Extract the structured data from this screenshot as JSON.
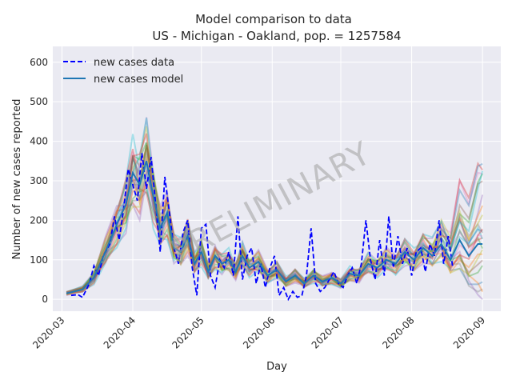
{
  "chart_data": {
    "type": "line",
    "title": "Model comparison to data",
    "subtitle": "US - Michigan - Oakland, pop. = 1257584",
    "xlabel": "Day",
    "ylabel": "Number of new cases reported",
    "watermark": "PRELIMINARY",
    "xlim": [
      "2020-02-26",
      "2020-09-09"
    ],
    "ylim": [
      -30,
      640
    ],
    "yticks": [
      0,
      100,
      200,
      300,
      400,
      500,
      600
    ],
    "xticks": [
      "2020-03",
      "2020-04",
      "2020-05",
      "2020-06",
      "2020-07",
      "2020-08",
      "2020-09"
    ],
    "grid": true,
    "legend_position": "top-left",
    "legend": [
      "new cases data",
      "new cases model"
    ],
    "colors": {
      "data": "#0000ff",
      "model": "#1f77b4",
      "background": "#eaeaf2",
      "grid": "#ffffff",
      "ensemble": [
        "#1f77b4",
        "#ff7f0e",
        "#2ca02c",
        "#d62728",
        "#9467bd",
        "#8c564b",
        "#e377c2",
        "#7f7f7f",
        "#bcbd22",
        "#17becf"
      ]
    },
    "series": [
      {
        "name": "new cases data",
        "style": "dashed",
        "points": [
          [
            "2020-03-05",
            10
          ],
          [
            "2020-03-08",
            12
          ],
          [
            "2020-03-10",
            5
          ],
          [
            "2020-03-13",
            40
          ],
          [
            "2020-03-15",
            85
          ],
          [
            "2020-03-17",
            60
          ],
          [
            "2020-03-19",
            110
          ],
          [
            "2020-03-22",
            140
          ],
          [
            "2020-03-24",
            210
          ],
          [
            "2020-03-26",
            150
          ],
          [
            "2020-03-28",
            230
          ],
          [
            "2020-03-30",
            330
          ],
          [
            "2020-04-01",
            290
          ],
          [
            "2020-04-03",
            250
          ],
          [
            "2020-04-05",
            370
          ],
          [
            "2020-04-07",
            280
          ],
          [
            "2020-04-09",
            360
          ],
          [
            "2020-04-11",
            240
          ],
          [
            "2020-04-13",
            120
          ],
          [
            "2020-04-15",
            310
          ],
          [
            "2020-04-17",
            220
          ],
          [
            "2020-04-19",
            130
          ],
          [
            "2020-04-21",
            90
          ],
          [
            "2020-04-23",
            170
          ],
          [
            "2020-04-25",
            200
          ],
          [
            "2020-04-27",
            80
          ],
          [
            "2020-04-29",
            10
          ],
          [
            "2020-05-01",
            180
          ],
          [
            "2020-05-03",
            190
          ],
          [
            "2020-05-05",
            60
          ],
          [
            "2020-05-07",
            30
          ],
          [
            "2020-05-09",
            100
          ],
          [
            "2020-05-11",
            80
          ],
          [
            "2020-05-13",
            120
          ],
          [
            "2020-05-15",
            60
          ],
          [
            "2020-05-17",
            210
          ],
          [
            "2020-05-19",
            50
          ],
          [
            "2020-05-21",
            110
          ],
          [
            "2020-05-23",
            130
          ],
          [
            "2020-05-25",
            40
          ],
          [
            "2020-05-27",
            90
          ],
          [
            "2020-05-29",
            30
          ],
          [
            "2020-05-31",
            80
          ],
          [
            "2020-06-02",
            110
          ],
          [
            "2020-06-04",
            10
          ],
          [
            "2020-06-06",
            30
          ],
          [
            "2020-06-08",
            0
          ],
          [
            "2020-06-10",
            20
          ],
          [
            "2020-06-12",
            5
          ],
          [
            "2020-06-14",
            10
          ],
          [
            "2020-06-16",
            60
          ],
          [
            "2020-06-18",
            180
          ],
          [
            "2020-06-20",
            40
          ],
          [
            "2020-06-22",
            20
          ],
          [
            "2020-06-24",
            30
          ],
          [
            "2020-06-26",
            50
          ],
          [
            "2020-06-28",
            70
          ],
          [
            "2020-06-30",
            40
          ],
          [
            "2020-07-02",
            30
          ],
          [
            "2020-07-04",
            60
          ],
          [
            "2020-07-06",
            80
          ],
          [
            "2020-07-08",
            40
          ],
          [
            "2020-07-10",
            90
          ],
          [
            "2020-07-12",
            200
          ],
          [
            "2020-07-14",
            100
          ],
          [
            "2020-07-16",
            50
          ],
          [
            "2020-07-18",
            150
          ],
          [
            "2020-07-20",
            60
          ],
          [
            "2020-07-22",
            210
          ],
          [
            "2020-07-24",
            80
          ],
          [
            "2020-07-26",
            160
          ],
          [
            "2020-07-28",
            90
          ],
          [
            "2020-07-30",
            130
          ],
          [
            "2020-08-01",
            60
          ],
          [
            "2020-08-03",
            120
          ],
          [
            "2020-08-05",
            130
          ],
          [
            "2020-08-07",
            70
          ],
          [
            "2020-08-09",
            140
          ],
          [
            "2020-08-11",
            110
          ],
          [
            "2020-08-13",
            200
          ],
          [
            "2020-08-15",
            90
          ],
          [
            "2020-08-17",
            160
          ],
          [
            "2020-08-19",
            80
          ]
        ]
      },
      {
        "name": "new cases model",
        "style": "solid",
        "points": [
          [
            "2020-03-03",
            15
          ],
          [
            "2020-03-10",
            25
          ],
          [
            "2020-03-15",
            55
          ],
          [
            "2020-03-20",
            120
          ],
          [
            "2020-03-25",
            190
          ],
          [
            "2020-03-29",
            240
          ],
          [
            "2020-04-01",
            320
          ],
          [
            "2020-04-04",
            290
          ],
          [
            "2020-04-07",
            350
          ],
          [
            "2020-04-10",
            260
          ],
          [
            "2020-04-13",
            180
          ],
          [
            "2020-04-16",
            220
          ],
          [
            "2020-04-19",
            130
          ],
          [
            "2020-04-22",
            120
          ],
          [
            "2020-04-25",
            160
          ],
          [
            "2020-04-28",
            90
          ],
          [
            "2020-05-01",
            120
          ],
          [
            "2020-05-04",
            70
          ],
          [
            "2020-05-07",
            110
          ],
          [
            "2020-05-10",
            90
          ],
          [
            "2020-05-13",
            100
          ],
          [
            "2020-05-16",
            70
          ],
          [
            "2020-05-19",
            110
          ],
          [
            "2020-05-22",
            80
          ],
          [
            "2020-05-26",
            95
          ],
          [
            "2020-05-30",
            60
          ],
          [
            "2020-06-03",
            75
          ],
          [
            "2020-06-07",
            45
          ],
          [
            "2020-06-11",
            60
          ],
          [
            "2020-06-15",
            40
          ],
          [
            "2020-06-19",
            60
          ],
          [
            "2020-06-23",
            45
          ],
          [
            "2020-06-27",
            55
          ],
          [
            "2020-07-01",
            40
          ],
          [
            "2020-07-05",
            65
          ],
          [
            "2020-07-09",
            60
          ],
          [
            "2020-07-13",
            90
          ],
          [
            "2020-07-17",
            80
          ],
          [
            "2020-07-21",
            100
          ],
          [
            "2020-07-25",
            90
          ],
          [
            "2020-07-29",
            120
          ],
          [
            "2020-08-02",
            100
          ],
          [
            "2020-08-06",
            130
          ],
          [
            "2020-08-10",
            110
          ],
          [
            "2020-08-14",
            140
          ],
          [
            "2020-08-18",
            100
          ],
          [
            "2020-08-22",
            150
          ],
          [
            "2020-08-26",
            110
          ],
          [
            "2020-08-30",
            140
          ],
          [
            "2020-09-01",
            140
          ]
        ]
      }
    ]
  }
}
